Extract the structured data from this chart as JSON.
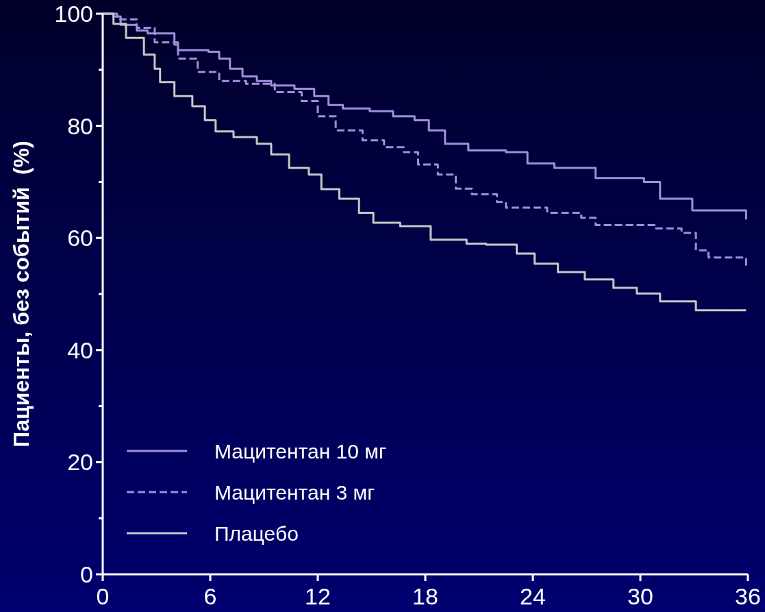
{
  "chart_data": {
    "type": "step",
    "ylabel": "Пациенты, без событий  (%)",
    "xlim": [
      0,
      36
    ],
    "xticks": [
      0,
      6,
      12,
      18,
      24,
      30,
      36
    ],
    "ylim": [
      0,
      100
    ],
    "yticks": [
      0,
      {
        "value": 10,
        "label": null
      },
      20,
      {
        "value": 30,
        "label": null
      },
      40,
      {
        "value": 50,
        "label": null
      },
      60,
      {
        "value": 70,
        "label": null
      },
      80,
      {
        "value": 90,
        "label": null
      },
      100
    ],
    "legend": "bottom left",
    "grid": false,
    "series": [
      {
        "name": "Мацитентан 10 мг",
        "color": "#a08fe0",
        "line_style": "solid",
        "x": [
          0,
          0.6,
          1,
          1.9,
          2.5,
          4,
          4.2,
          5.9,
          6.5,
          7.1,
          7.8,
          8.6,
          9.4,
          10.7,
          11.8,
          12.6,
          13.4,
          14.9,
          16.2,
          17.4,
          18.2,
          19.1,
          20.4,
          22.5,
          23.7,
          25.2,
          27.5,
          30.2,
          31.1,
          32.9,
          35.9
        ],
        "values": [
          100,
          99.5,
          98,
          97,
          96.5,
          94.5,
          93.5,
          93.2,
          92,
          90.2,
          88.8,
          88,
          87.2,
          86.6,
          85.3,
          83.7,
          83.1,
          82.6,
          81.7,
          81,
          79.2,
          76.8,
          75.6,
          75.3,
          73.3,
          72.5,
          70.7,
          70,
          67,
          64.9,
          63.3
        ]
      },
      {
        "name": "Мацитентан 3 мг",
        "color": "#a08fe0",
        "line_style": "dashed",
        "x": [
          0,
          0.8,
          1.9,
          2.9,
          4.2,
          5.3,
          6.5,
          8,
          9.6,
          11.1,
          12,
          13,
          14.5,
          15.7,
          16.8,
          17.6,
          18.7,
          19.7,
          20.6,
          22,
          22.5,
          24.8,
          26.7,
          27.5,
          30.8,
          32.3,
          33.1,
          33.8,
          35.9
        ],
        "values": [
          100,
          99,
          97.5,
          94.9,
          92,
          89.6,
          88,
          87.5,
          86,
          84.4,
          81.7,
          79.2,
          77.4,
          76.2,
          75.3,
          73.1,
          71.3,
          68.8,
          67.8,
          66.4,
          65.4,
          64.5,
          63.6,
          62.3,
          61.7,
          60.9,
          57.8,
          56.5,
          54.8
        ]
      },
      {
        "name": "Плацебо",
        "color": "#c8c8c8",
        "line_style": "solid",
        "x": [
          0,
          0.6,
          1.3,
          2.3,
          2.9,
          3.2,
          4,
          5,
          5.7,
          6.3,
          7.3,
          8.6,
          9.4,
          10.4,
          11.5,
          12.2,
          13.2,
          14.3,
          15.1,
          16.6,
          18.3,
          20.3,
          21.4,
          23.1,
          24.1,
          25.4,
          26.9,
          28.5,
          29.8,
          31.1,
          33.1,
          35.9
        ],
        "values": [
          100,
          98.2,
          95.7,
          92.7,
          90.2,
          87.8,
          85.3,
          83.5,
          81,
          79,
          78,
          76.8,
          74.9,
          72.5,
          71.3,
          68.7,
          67,
          64.5,
          62.7,
          62.1,
          59.7,
          59,
          58.8,
          57.2,
          55.4,
          53.9,
          52.6,
          51.1,
          50.1,
          48.7,
          47.1,
          47.1
        ]
      }
    ]
  }
}
